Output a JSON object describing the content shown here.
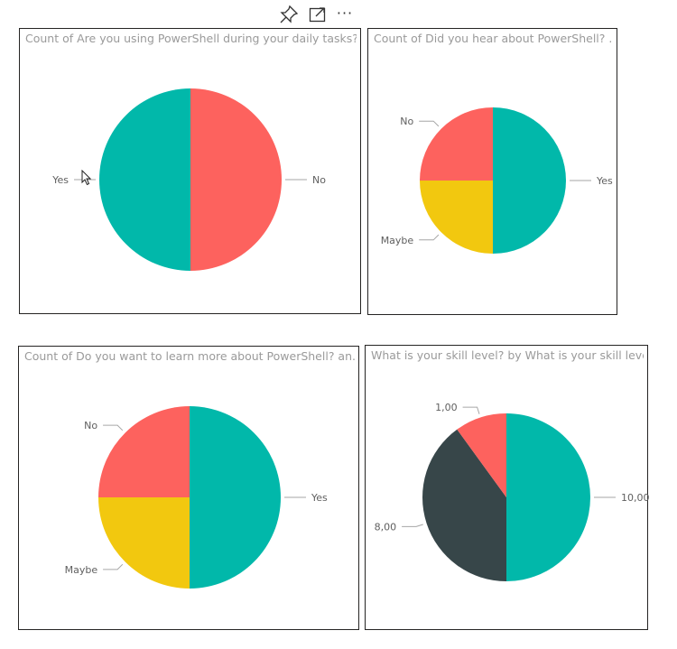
{
  "toolbar": {
    "pin_icon": "pin-icon",
    "focus_icon": "focus-mode-icon",
    "more_icon": "more-options-icon",
    "more_label": "···"
  },
  "chart_data": [
    {
      "type": "pie",
      "title": "Count of Are you using PowerShell during your daily tasks?...",
      "slices": [
        {
          "label": "No",
          "value": 1,
          "color": "#FD625E"
        },
        {
          "label": "Yes",
          "value": 1,
          "color": "#01B8AA"
        }
      ]
    },
    {
      "type": "pie",
      "title": "Count of Did you hear about PowerShell? ...",
      "slices": [
        {
          "label": "Yes",
          "value": 2,
          "color": "#01B8AA"
        },
        {
          "label": "Maybe",
          "value": 1,
          "color": "#F2C80F"
        },
        {
          "label": "No",
          "value": 1,
          "color": "#FD625E"
        }
      ]
    },
    {
      "type": "pie",
      "title": "Count of Do you want to learn more about PowerShell? an...",
      "slices": [
        {
          "label": "Yes",
          "value": 2,
          "color": "#01B8AA"
        },
        {
          "label": "Maybe",
          "value": 1,
          "color": "#F2C80F"
        },
        {
          "label": "No",
          "value": 1,
          "color": "#FD625E"
        }
      ]
    },
    {
      "type": "pie",
      "title": "What is your skill level? by What is your skill level?",
      "slices": [
        {
          "label": "10,00",
          "value": 10,
          "color": "#01B8AA"
        },
        {
          "label": "8,00",
          "value": 8,
          "color": "#374649"
        },
        {
          "label": "1,00",
          "value": 2,
          "color": "#FD625E"
        }
      ]
    }
  ]
}
